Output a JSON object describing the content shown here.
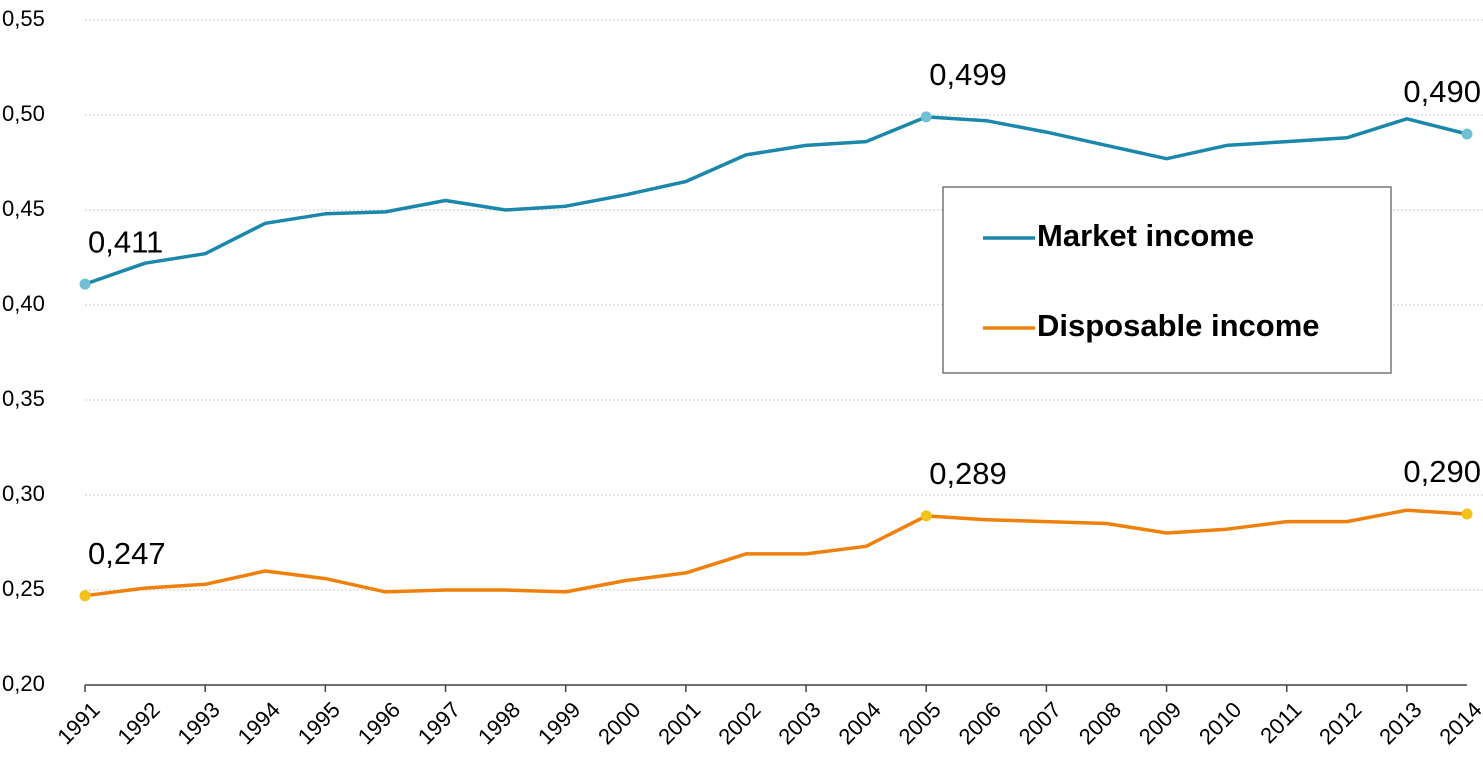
{
  "chart_data": {
    "type": "line",
    "categories": [
      "1991",
      "1992",
      "1993",
      "1994",
      "1995",
      "1996",
      "1997",
      "1998",
      "1999",
      "2000",
      "2001",
      "2002",
      "2003",
      "2004",
      "2005",
      "2006",
      "2007",
      "2008",
      "2009",
      "2010",
      "2011",
      "2012",
      "2013",
      "2014"
    ],
    "series": [
      {
        "name": "Market income",
        "color": "#1b87aa",
        "marker_color": "#6fc0d2",
        "values": [
          0.411,
          0.422,
          0.427,
          0.443,
          0.448,
          0.449,
          0.455,
          0.45,
          0.452,
          0.458,
          0.465,
          0.479,
          0.484,
          0.486,
          0.499,
          0.497,
          0.491,
          0.484,
          0.477,
          0.484,
          0.486,
          0.488,
          0.498,
          0.49
        ],
        "value_labels": [
          "0,411",
          null,
          null,
          null,
          null,
          null,
          null,
          null,
          null,
          null,
          null,
          null,
          null,
          null,
          "0,499",
          null,
          null,
          null,
          null,
          null,
          null,
          null,
          null,
          "0,490"
        ]
      },
      {
        "name": "Disposable income",
        "color": "#f0800c",
        "marker_color": "#f5c21a",
        "values": [
          0.247,
          0.251,
          0.253,
          0.26,
          0.256,
          0.249,
          0.25,
          0.25,
          0.249,
          0.255,
          0.259,
          0.269,
          0.269,
          0.273,
          0.289,
          0.287,
          0.286,
          0.285,
          0.28,
          0.282,
          0.286,
          0.286,
          0.292,
          0.29
        ],
        "value_labels": [
          "0,247",
          null,
          null,
          null,
          null,
          null,
          null,
          null,
          null,
          null,
          null,
          null,
          null,
          null,
          "0,289",
          null,
          null,
          null,
          null,
          null,
          null,
          null,
          null,
          "0,290"
        ]
      }
    ],
    "ylim": [
      0.2,
      0.55
    ],
    "yticks": [
      {
        "value": 0.2,
        "label": "0,20"
      },
      {
        "value": 0.25,
        "label": "0,25"
      },
      {
        "value": 0.3,
        "label": "0,30"
      },
      {
        "value": 0.35,
        "label": "0,35"
      },
      {
        "value": 0.4,
        "label": "0,40"
      },
      {
        "value": 0.45,
        "label": "0,45"
      },
      {
        "value": 0.5,
        "label": "0,50"
      },
      {
        "value": 0.55,
        "label": "0,55"
      }
    ],
    "grid": true,
    "legend": "right"
  }
}
